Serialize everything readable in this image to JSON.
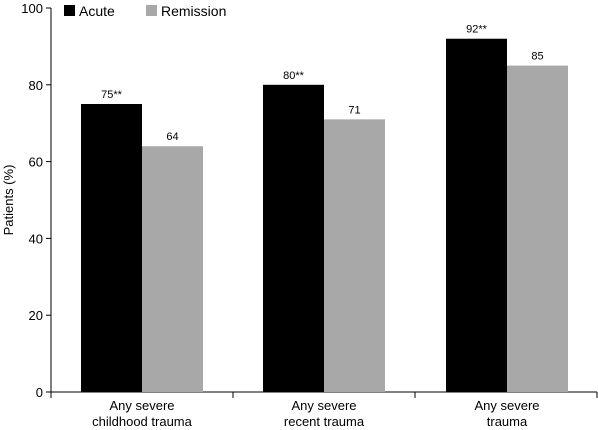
{
  "chart_data": {
    "type": "bar",
    "title": "",
    "xlabel": "",
    "ylabel": "Patients (%)",
    "ylim": [
      0,
      100
    ],
    "yticks": [
      0,
      20,
      40,
      60,
      80,
      100
    ],
    "categories": [
      [
        "Any severe",
        "childhood trauma"
      ],
      [
        "Any severe",
        "recent trauma"
      ],
      [
        "Any severe",
        "trauma"
      ]
    ],
    "series": [
      {
        "name": "Acute",
        "color": "#000000",
        "values": [
          75,
          80,
          92
        ],
        "labels": [
          "75**",
          "80**",
          "92**"
        ]
      },
      {
        "name": "Remission",
        "color": "#a8a8a8",
        "values": [
          64,
          71,
          85
        ],
        "labels": [
          "64",
          "71",
          "85"
        ]
      }
    ],
    "legend": "top-left",
    "grid": false
  }
}
